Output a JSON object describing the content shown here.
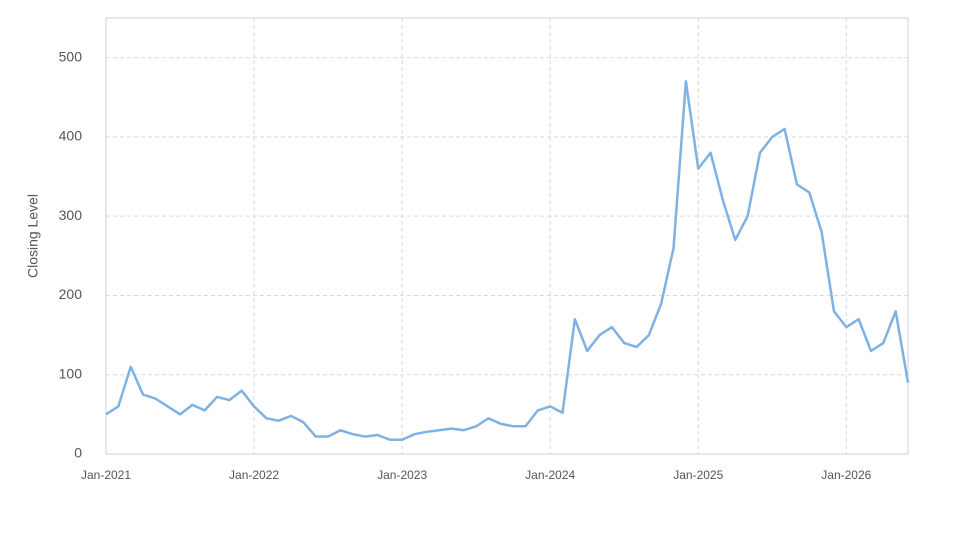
{
  "chart_data": {
    "type": "line",
    "y_label": "Closing Level",
    "x": [
      "2021-01",
      "2021-02",
      "2021-03",
      "2021-04",
      "2021-05",
      "2021-06",
      "2021-07",
      "2021-08",
      "2021-09",
      "2021-10",
      "2021-11",
      "2021-12",
      "2022-01",
      "2022-02",
      "2022-03",
      "2022-04",
      "2022-05",
      "2022-06",
      "2022-07",
      "2022-08",
      "2022-09",
      "2022-10",
      "2022-11",
      "2022-12",
      "2023-01",
      "2023-02",
      "2023-03",
      "2023-04",
      "2023-05",
      "2023-06",
      "2023-07",
      "2023-08",
      "2023-09",
      "2023-10",
      "2023-11",
      "2023-12",
      "2024-01",
      "2024-02",
      "2024-03",
      "2024-04",
      "2024-05",
      "2024-06",
      "2024-07",
      "2024-08",
      "2024-09",
      "2024-10",
      "2024-11",
      "2024-12",
      "2025-01",
      "2025-02",
      "2025-03",
      "2025-04",
      "2025-05",
      "2025-06",
      "2025-07",
      "2025-08",
      "2025-09",
      "2025-10",
      "2025-11",
      "2025-12",
      "2026-01",
      "2026-02",
      "2026-03",
      "2026-04",
      "2026-05",
      "2026-06"
    ],
    "series": [
      {
        "name": "Closing Level",
        "color": "#7eb2e4",
        "values": [
          50,
          60,
          110,
          75,
          70,
          60,
          50,
          62,
          55,
          72,
          68,
          80,
          60,
          45,
          42,
          48,
          40,
          22,
          22,
          30,
          25,
          22,
          24,
          18,
          18,
          25,
          28,
          30,
          32,
          30,
          35,
          45,
          38,
          35,
          35,
          55,
          60,
          52,
          170,
          130,
          150,
          160,
          140,
          135,
          150,
          190,
          260,
          470,
          360,
          380,
          320,
          270,
          300,
          380,
          400,
          410,
          340,
          330,
          280,
          180,
          160,
          170,
          130,
          140,
          180,
          90
        ]
      }
    ],
    "xlim": [
      "2021-01",
      "2026-06"
    ],
    "xticks": [
      {
        "value": "2021-01",
        "label": "Jan-2021"
      },
      {
        "value": "2022-01",
        "label": "Jan-2022"
      },
      {
        "value": "2023-01",
        "label": "Jan-2023"
      },
      {
        "value": "2024-01",
        "label": "Jan-2024"
      },
      {
        "value": "2025-01",
        "label": "Jan-2025"
      },
      {
        "value": "2026-01",
        "label": "Jan-2026"
      }
    ],
    "ylim": [
      0,
      550
    ],
    "yticks": [
      0,
      100,
      200,
      300,
      400,
      500
    ],
    "grid": true
  }
}
